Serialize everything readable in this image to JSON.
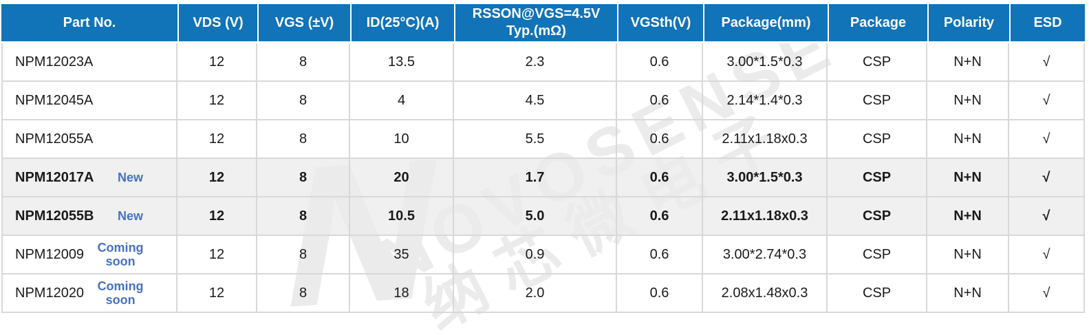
{
  "watermark": {
    "logo_letter": "N",
    "brand_text": "NOVOSENSE",
    "brand_text_cn": "纳芯微电子"
  },
  "colors": {
    "header_bg": "#1173B8",
    "badge_blue": "#4472C4",
    "highlight_row_bg": "#F0F0F0",
    "grid_line": "#D8D8D8",
    "header_text": "#FFFFFF",
    "body_text": "#1A1A1A",
    "watermark_gray": "#EBEBEB"
  },
  "table": {
    "columns": [
      "Part No.",
      "VDS (V)",
      "VGS (±V)",
      "ID(25°C)(A)",
      "RSSON@VGS=4.5V\nTyp.(mΩ)",
      "VGSth(V)",
      "Package(mm)",
      "Package",
      "Polarity",
      "ESD"
    ],
    "rows": [
      {
        "part_no": "NPM12023A",
        "badge": "",
        "vds": "12",
        "vgs": "8",
        "id_25c": "13.5",
        "rsson": "2.3",
        "vgsth": "0.6",
        "package_mm": "3.00*1.5*0.3",
        "package": "CSP",
        "polarity": "N+N",
        "esd": "√",
        "highlight": false
      },
      {
        "part_no": "NPM12045A",
        "badge": "",
        "vds": "12",
        "vgs": "8",
        "id_25c": "4",
        "rsson": "4.5",
        "vgsth": "0.6",
        "package_mm": "2.14*1.4*0.3",
        "package": "CSP",
        "polarity": "N+N",
        "esd": "√",
        "highlight": false
      },
      {
        "part_no": "NPM12055A",
        "badge": "",
        "vds": "12",
        "vgs": "8",
        "id_25c": "10",
        "rsson": "5.5",
        "vgsth": "0.6",
        "package_mm": "2.11x1.18x0.3",
        "package": "CSP",
        "polarity": "N+N",
        "esd": "√",
        "highlight": false
      },
      {
        "part_no": "NPM12017A",
        "badge": "New",
        "vds": "12",
        "vgs": "8",
        "id_25c": "20",
        "rsson": "1.7",
        "vgsth": "0.6",
        "package_mm": "3.00*1.5*0.3",
        "package": "CSP",
        "polarity": "N+N",
        "esd": "√",
        "highlight": true
      },
      {
        "part_no": "NPM12055B",
        "badge": "New",
        "vds": "12",
        "vgs": "8",
        "id_25c": "10.5",
        "rsson": "5.0",
        "vgsth": "0.6",
        "package_mm": "2.11x1.18x0.3",
        "package": "CSP",
        "polarity": "N+N",
        "esd": "√",
        "highlight": true
      },
      {
        "part_no": "NPM12009",
        "badge": "Coming soon",
        "vds": "12",
        "vgs": "8",
        "id_25c": "35",
        "rsson": "0.9",
        "vgsth": "0.6",
        "package_mm": "3.00*2.74*0.3",
        "package": "CSP",
        "polarity": "N+N",
        "esd": "√",
        "highlight": false
      },
      {
        "part_no": "NPM12020",
        "badge": "Coming soon",
        "vds": "12",
        "vgs": "8",
        "id_25c": "18",
        "rsson": "2.0",
        "vgsth": "0.6",
        "package_mm": "2.08x1.48x0.3",
        "package": "CSP",
        "polarity": "N+N",
        "esd": "√",
        "highlight": false
      }
    ]
  }
}
